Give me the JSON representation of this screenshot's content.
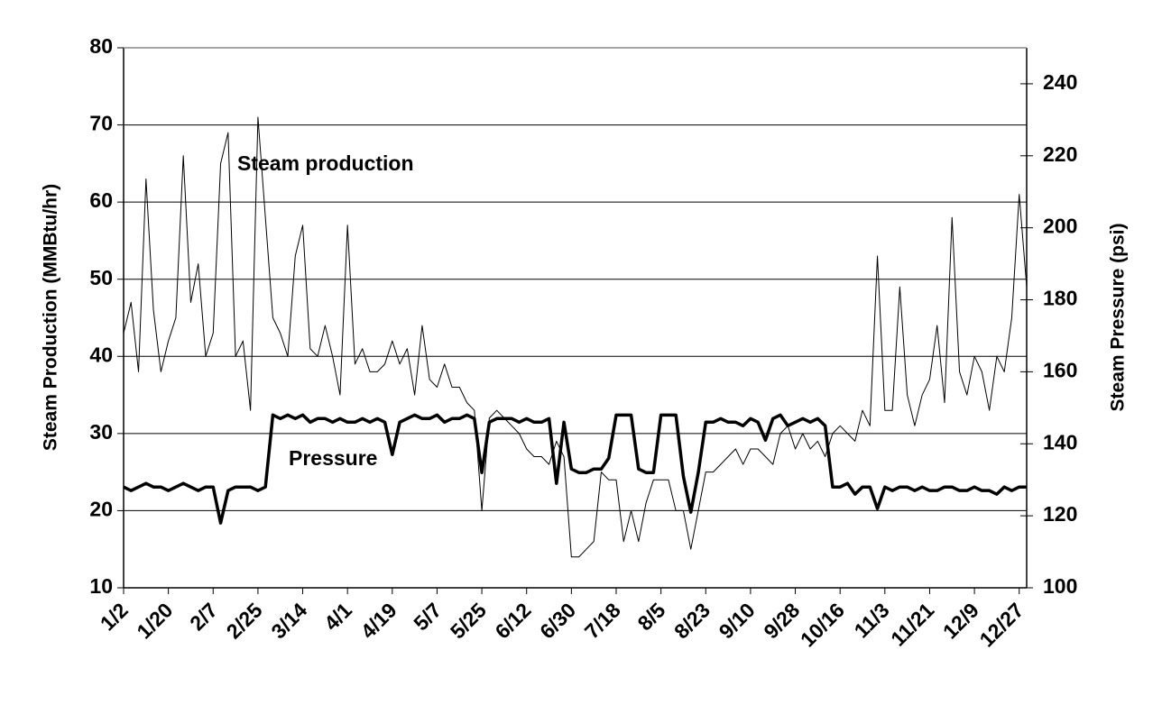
{
  "chart_data": {
    "type": "line",
    "y_label": "Steam Production (MMBtu/hr)",
    "y2_label": "Steam Pressure (psi)",
    "categories": [
      "1/2",
      null,
      null,
      null,
      null,
      null,
      "1/20",
      null,
      null,
      null,
      null,
      null,
      "2/7",
      null,
      null,
      null,
      null,
      null,
      "2/25",
      null,
      null,
      null,
      null,
      null,
      "3/14",
      null,
      null,
      null,
      null,
      null,
      "4/1",
      null,
      null,
      null,
      null,
      null,
      "4/19",
      null,
      null,
      null,
      null,
      null,
      "5/7",
      null,
      null,
      null,
      null,
      null,
      "5/25",
      null,
      null,
      null,
      null,
      null,
      "6/12",
      null,
      null,
      null,
      null,
      null,
      "6/30",
      null,
      null,
      null,
      null,
      null,
      "7/18",
      null,
      null,
      null,
      null,
      null,
      "8/5",
      null,
      null,
      null,
      null,
      null,
      "8/23",
      null,
      null,
      null,
      null,
      null,
      "9/10",
      null,
      null,
      null,
      null,
      null,
      "9/28",
      null,
      null,
      null,
      null,
      null,
      "10/16",
      null,
      null,
      null,
      null,
      null,
      "11/3",
      null,
      null,
      null,
      null,
      null,
      "11/21",
      null,
      null,
      null,
      null,
      null,
      "12/9",
      null,
      null,
      null,
      null,
      null,
      "12/27",
      null
    ],
    "series": [
      {
        "name": "Steam production",
        "color": "#000000",
        "axis": "y",
        "values": [
          43,
          47,
          38,
          63,
          46,
          38,
          42,
          45,
          66,
          47,
          52,
          40,
          43,
          65,
          69,
          40,
          42,
          33,
          71,
          58,
          45,
          43,
          40,
          53,
          57,
          41,
          40,
          44,
          40,
          35,
          57,
          39,
          41,
          38,
          38,
          39,
          42,
          39,
          41,
          35,
          44,
          37,
          36,
          39,
          36,
          36,
          34,
          33,
          20,
          32,
          33,
          32,
          31,
          30,
          28,
          27,
          27,
          26,
          29,
          27,
          14,
          14,
          15,
          16,
          25,
          24,
          24,
          16,
          20,
          16,
          21,
          24,
          24,
          24,
          20,
          20,
          15,
          20,
          25,
          25,
          26,
          27,
          28,
          26,
          28,
          28,
          27,
          26,
          30,
          31,
          28,
          30,
          28,
          29,
          27,
          30,
          31,
          30,
          29,
          33,
          31,
          53,
          33,
          33,
          49,
          35,
          31,
          35,
          37,
          44,
          34,
          58,
          38,
          35,
          40,
          38,
          33,
          40,
          38,
          45,
          61,
          49
        ]
      },
      {
        "name": "Pressure",
        "color": "#000000",
        "axis": "y2",
        "values": [
          128,
          127,
          128,
          129,
          128,
          128,
          127,
          128,
          129,
          128,
          127,
          128,
          128,
          118,
          127,
          128,
          128,
          128,
          127,
          128,
          148,
          147,
          148,
          147,
          148,
          146,
          147,
          147,
          146,
          147,
          146,
          146,
          147,
          146,
          147,
          146,
          137,
          146,
          147,
          148,
          147,
          147,
          148,
          146,
          147,
          147,
          148,
          147,
          132,
          146,
          147,
          147,
          147,
          146,
          147,
          146,
          146,
          147,
          129,
          146,
          133,
          132,
          132,
          133,
          133,
          136,
          148,
          148,
          148,
          133,
          132,
          132,
          148,
          148,
          148,
          131,
          121,
          132,
          146,
          146,
          147,
          146,
          146,
          145,
          147,
          146,
          141,
          147,
          148,
          145,
          146,
          147,
          146,
          147,
          145,
          128,
          128,
          129,
          126,
          128,
          128,
          122,
          128,
          127,
          128,
          128,
          127,
          128,
          127,
          127,
          128,
          128,
          127,
          127,
          128,
          127,
          127,
          126,
          128,
          127,
          128,
          128
        ]
      }
    ],
    "ylim": [
      10,
      80
    ],
    "yticks": [
      10,
      20,
      30,
      40,
      50,
      60,
      70,
      80
    ],
    "y2lim": [
      100,
      250
    ],
    "y2ticks": [
      100,
      120,
      140,
      160,
      180,
      200,
      220,
      240
    ],
    "grid": true
  }
}
